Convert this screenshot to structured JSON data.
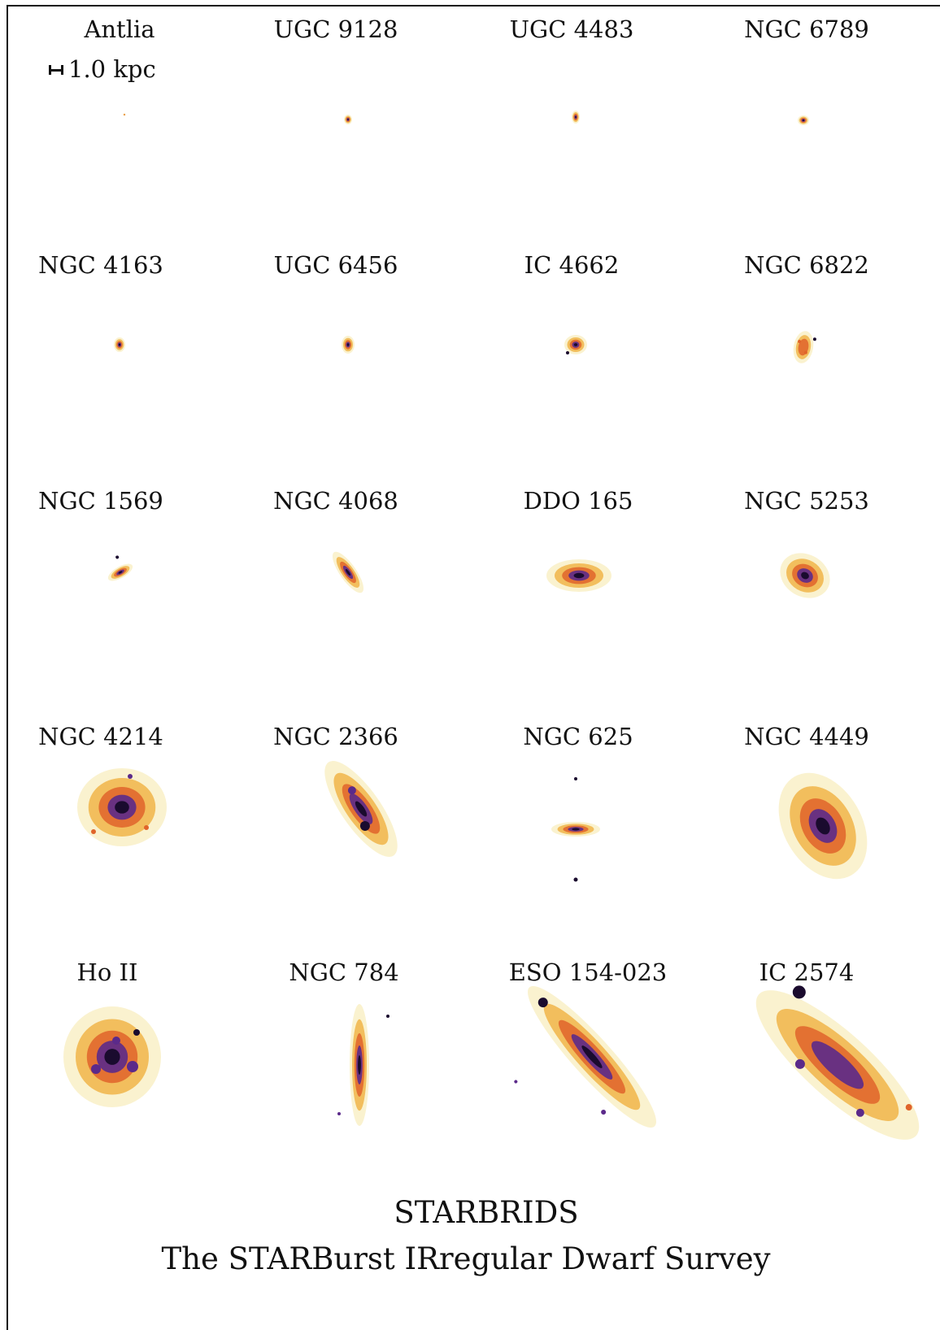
{
  "galaxies": [
    {
      "name": "Antlia"
    },
    {
      "name": "UGC 9128"
    },
    {
      "name": "UGC 4483"
    },
    {
      "name": "NGC 6789"
    },
    {
      "name": "NGC 4163"
    },
    {
      "name": "UGC 6456"
    },
    {
      "name": "IC 4662"
    },
    {
      "name": "NGC 6822"
    },
    {
      "name": "NGC 1569"
    },
    {
      "name": "NGC 4068"
    },
    {
      "name": "DDO 165"
    },
    {
      "name": "NGC 5253"
    },
    {
      "name": "NGC 4214"
    },
    {
      "name": "NGC 2366"
    },
    {
      "name": "NGC 625"
    },
    {
      "name": "NGC 4449"
    },
    {
      "name": "Ho II"
    },
    {
      "name": "NGC 784"
    },
    {
      "name": "ESO 154-023"
    },
    {
      "name": "IC 2574"
    }
  ],
  "scale_bar": {
    "label": "1.0 kpc"
  },
  "footer": {
    "title": "STARBRIDS",
    "subtitle": "The STARBurst IRregular Dwarf Survey"
  },
  "colors": {
    "core": "#1a0b2e",
    "inner": "#5b2a8a",
    "mid": "#e0642a",
    "outer": "#f0b040",
    "halo": "#f6e8a8"
  }
}
